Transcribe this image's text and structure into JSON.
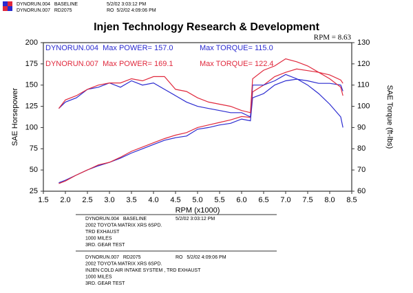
{
  "header": {
    "runs": [
      {
        "name": "DYNORUN.004   BASELINE",
        "date": "5/2/02 3:03:12 PM"
      },
      {
        "name": "DYNORUN.007   RD2075",
        "date": "RO  5/2/02 4:09:06 PM"
      }
    ]
  },
  "chart_data": {
    "type": "line",
    "title": "Injen Technology Research & Development",
    "x_label": "RPM (x1000)",
    "y_label": "SAE Horsepower",
    "y2_label": "SAE Torque (ft-lbs)",
    "annotations": [
      {
        "text": "RPM = 8.63",
        "color": "#000000"
      },
      {
        "text": "DYNORUN.004  Max POWER= 157.0",
        "color": "#2a2ad0"
      },
      {
        "text": "Max TORQUE= 115.0",
        "color": "#2a2ad0"
      },
      {
        "text": "DYNORUN.007  Max POWER= 169.1",
        "color": "#e0283c"
      },
      {
        "text": "Max TORQUE= 122.4",
        "color": "#e0283c"
      }
    ],
    "xlim": [
      1.5,
      8.5
    ],
    "xticks": [
      1.5,
      {
        "value": 2,
        "label": "2.0"
      },
      2.5,
      {
        "value": 3,
        "label": "3.0"
      },
      3.5,
      {
        "value": 4,
        "label": "4.0"
      },
      4.5,
      {
        "value": 5,
        "label": "5.0"
      },
      5.5,
      {
        "value": 6,
        "label": "6.0"
      },
      6.5,
      {
        "value": 7,
        "label": "7.0"
      },
      7.5,
      {
        "value": 8,
        "label": "8.0"
      },
      8.5
    ],
    "ylim": [
      25,
      200
    ],
    "yticks": [
      25,
      50,
      75,
      100,
      125,
      150,
      175,
      200
    ],
    "y2lim": [
      60,
      130
    ],
    "y2ticks": [
      60,
      70,
      80,
      90,
      100,
      110,
      120,
      130
    ],
    "x": [
      1.85,
      2.0,
      2.25,
      2.5,
      2.75,
      3.0,
      3.25,
      3.5,
      3.75,
      4.0,
      4.25,
      4.5,
      4.75,
      5.0,
      5.25,
      5.5,
      5.75,
      6.0,
      6.2,
      6.25,
      6.5,
      6.75,
      7.0,
      7.25,
      7.5,
      7.75,
      8.0,
      8.25,
      8.3
    ],
    "series": [
      {
        "color": "#2a2ad0",
        "values": [
          35,
          38,
          44,
          50,
          55,
          59,
          64,
          70,
          75,
          80,
          85,
          88,
          90,
          98,
          100,
          103,
          105,
          110,
          108,
          135,
          140,
          150,
          155,
          157,
          155,
          152,
          152,
          150,
          143
        ]
      },
      {
        "color": "#e0283c",
        "values": [
          34,
          37,
          44,
          50,
          56,
          59,
          65,
          72,
          77,
          82,
          87,
          91,
          94,
          100,
          103,
          106,
          109,
          113,
          112,
          142,
          150,
          160,
          165,
          169,
          167,
          165,
          162,
          156,
          152
        ]
      },
      {
        "color": "#2a2ad0",
        "axis": "y2",
        "values": [
          99,
          102,
          104,
          108,
          109,
          111,
          109,
          112,
          110,
          111,
          108,
          105,
          102,
          100,
          99,
          98,
          97,
          97,
          95,
          110,
          110,
          112,
          115,
          113,
          110,
          106,
          101,
          95,
          90
        ]
      },
      {
        "color": "#e0283c",
        "axis": "y2",
        "values": [
          99,
          103,
          105,
          108,
          110,
          111,
          111,
          113,
          112,
          114,
          114,
          108,
          107,
          104,
          102,
          101,
          100,
          98,
          97,
          113,
          117,
          119,
          122.4,
          121,
          119,
          116,
          113,
          109,
          105
        ]
      }
    ]
  },
  "notes": [
    {
      "name": "DYNORUN.004   BASELINE",
      "date": "5/2/02 3:03:12 PM",
      "lines": [
        "2002 TOYOTA MATRIX XRS 6SPD.",
        "TRD EXHAUST",
        "1000 MILES",
        "3RD. GEAR TEST"
      ]
    },
    {
      "name": "DYNORUN.007   RD2075",
      "date": "RO   5/2/02 4:09:06 PM",
      "lines": [
        "2002 TOYOTA MATRIX XRS 6SPD.",
        "INJEN COLD AIR INTAKE SYSTEM , TRD EXHAUST",
        "1000 MILES",
        "3RD. GEAR TEST"
      ]
    }
  ]
}
